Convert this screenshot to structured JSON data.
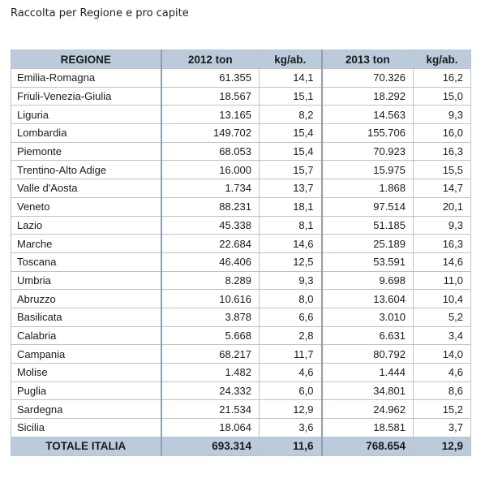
{
  "title": "Raccolta per Regione e pro capite",
  "table": {
    "headers": [
      "REGIONE",
      "2012 ton",
      "kg/ab.",
      "2013 ton",
      "kg/ab."
    ],
    "rows": [
      [
        "Emilia-Romagna",
        "61.355",
        "14,1",
        "70.326",
        "16,2"
      ],
      [
        "Friuli-Venezia-Giulia",
        "18.567",
        "15,1",
        "18.292",
        "15,0"
      ],
      [
        "Liguria",
        "13.165",
        "8,2",
        "14.563",
        "9,3"
      ],
      [
        "Lombardia",
        "149.702",
        "15,4",
        "155.706",
        "16,0"
      ],
      [
        "Piemonte",
        "68.053",
        "15,4",
        "70.923",
        "16,3"
      ],
      [
        "Trentino-Alto Adige",
        "16.000",
        "15,7",
        "15.975",
        "15,5"
      ],
      [
        "Valle d'Aosta",
        "1.734",
        "13,7",
        "1.868",
        "14,7"
      ],
      [
        "Veneto",
        "88.231",
        "18,1",
        "97.514",
        "20,1"
      ],
      [
        "Lazio",
        "45.338",
        "8,1",
        "51.185",
        "9,3"
      ],
      [
        "Marche",
        "22.684",
        "14,6",
        "25.189",
        "16,3"
      ],
      [
        "Toscana",
        "46.406",
        "12,5",
        "53.591",
        "14,6"
      ],
      [
        "Umbria",
        "8.289",
        "9,3",
        "9.698",
        "11,0"
      ],
      [
        "Abruzzo",
        "10.616",
        "8,0",
        "13.604",
        "10,4"
      ],
      [
        "Basilicata",
        "3.878",
        "6,6",
        "3.010",
        "5,2"
      ],
      [
        "Calabria",
        "5.668",
        "2,8",
        "6.631",
        "3,4"
      ],
      [
        "Campania",
        "68.217",
        "11,7",
        "80.792",
        "14,0"
      ],
      [
        "Molise",
        "1.482",
        "4,6",
        "1.444",
        "4,6"
      ],
      [
        "Puglia",
        "24.332",
        "6,0",
        "34.801",
        "8,6"
      ],
      [
        "Sardegna",
        "21.534",
        "12,9",
        "24.962",
        "15,2"
      ],
      [
        "Sicilia",
        "18.064",
        "3,6",
        "18.581",
        "3,7"
      ]
    ],
    "total": [
      "TOTALE ITALIA",
      "693.314",
      "11,6",
      "768.654",
      "12,9"
    ]
  }
}
